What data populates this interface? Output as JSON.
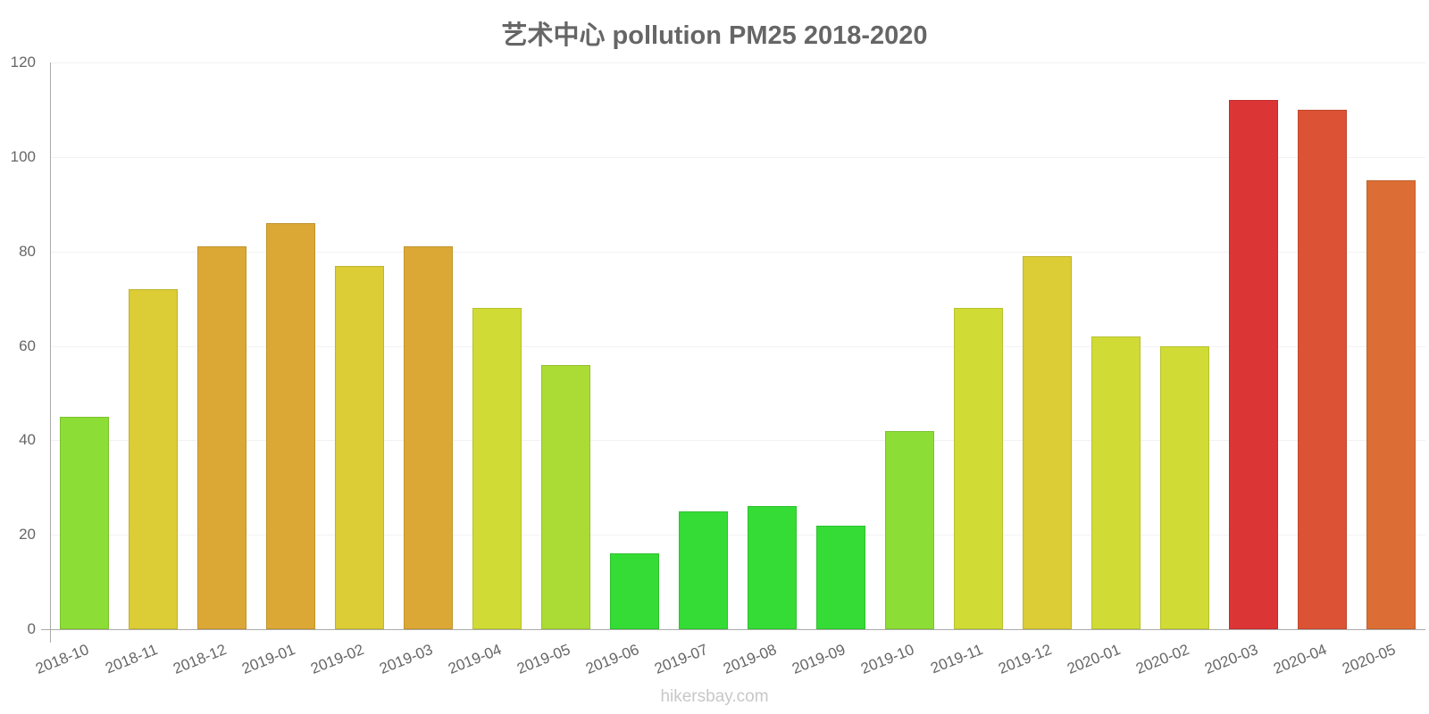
{
  "chart_data": {
    "type": "bar",
    "title": "艺术中心 pollution PM25 2018-2020",
    "xlabel": "",
    "ylabel": "",
    "ylim": [
      0,
      120
    ],
    "yticks": [
      0,
      20,
      40,
      60,
      80,
      100,
      120
    ],
    "grid": true,
    "legend": null,
    "categories": [
      "2018-10",
      "2018-11",
      "2018-12",
      "2019-01",
      "2019-02",
      "2019-03",
      "2019-04",
      "2019-05",
      "2019-06",
      "2019-07",
      "2019-08",
      "2019-09",
      "2019-10",
      "2019-11",
      "2019-12",
      "2020-01",
      "2020-02",
      "2020-03",
      "2020-04",
      "2020-05"
    ],
    "values": [
      45,
      72,
      81,
      86,
      77,
      81,
      68,
      56,
      16,
      25,
      26,
      22,
      42,
      68,
      79,
      62,
      60,
      112,
      110,
      95
    ],
    "colors": [
      "#8cdd35",
      "#dccc35",
      "#dca835",
      "#dca835",
      "#dccc35",
      "#dca835",
      "#d0dc35",
      "#abdc35",
      "#35dc35",
      "#35dc35",
      "#35dc35",
      "#35dc35",
      "#8cdd35",
      "#d0dc35",
      "#dccc35",
      "#d0dc35",
      "#d0dc35",
      "#dc3535",
      "#dc5235",
      "#dc6e35"
    ]
  },
  "footer": {
    "watermark": "hikersbay.com"
  }
}
